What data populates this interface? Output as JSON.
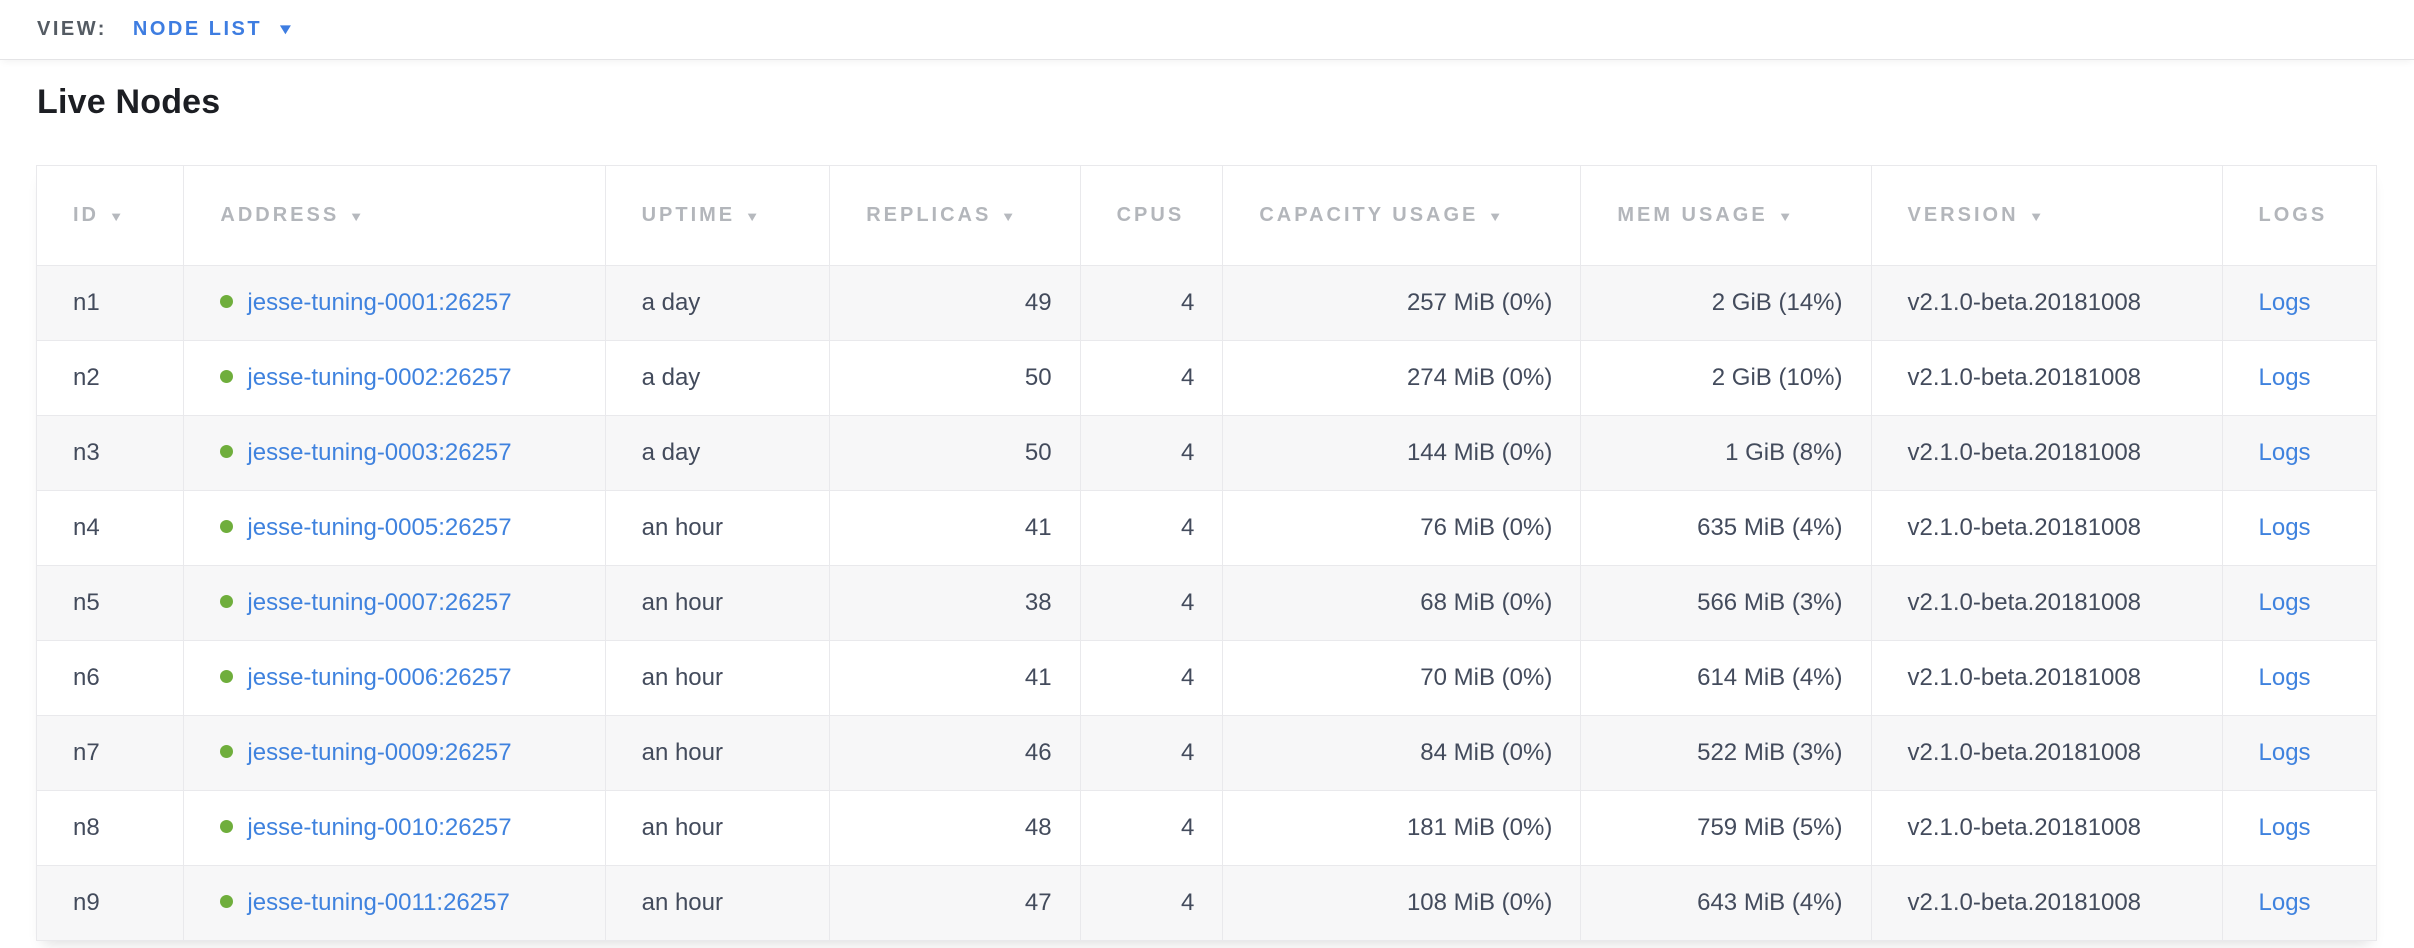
{
  "toolbar": {
    "view_label": "VIEW:",
    "selected_view": "NODE LIST"
  },
  "page": {
    "title": "Live Nodes"
  },
  "icons": {
    "sort_caret": "▼",
    "dropdown_caret": "▼",
    "health_dot": "healthy-green-dot"
  },
  "colors": {
    "accent_blue": "#3e7de1",
    "link_blue": "#3f82de",
    "healthy_green": "#6fae3c",
    "header_gray": "#b3b6bb",
    "body_text": "#434b5c",
    "row_alt_bg": "#f7f7f8",
    "border": "#e9e9ec"
  },
  "table": {
    "columns": [
      {
        "key": "id",
        "label": "ID",
        "sortable": true,
        "align": "left"
      },
      {
        "key": "address",
        "label": "ADDRESS",
        "sortable": true,
        "align": "left"
      },
      {
        "key": "uptime",
        "label": "UPTIME",
        "sortable": true,
        "align": "left"
      },
      {
        "key": "replicas",
        "label": "REPLICAS",
        "sortable": true,
        "align": "right"
      },
      {
        "key": "cpus",
        "label": "CPUS",
        "sortable": false,
        "align": "right"
      },
      {
        "key": "capacity",
        "label": "CAPACITY USAGE",
        "sortable": true,
        "align": "right"
      },
      {
        "key": "mem",
        "label": "MEM USAGE",
        "sortable": true,
        "align": "right"
      },
      {
        "key": "version",
        "label": "VERSION",
        "sortable": true,
        "align": "left"
      },
      {
        "key": "logs",
        "label": "LOGS",
        "sortable": false,
        "align": "left"
      }
    ],
    "rows": [
      {
        "id": "n1",
        "status": "healthy",
        "address": "jesse-tuning-0001:26257",
        "uptime": "a day",
        "replicas": "49",
        "cpus": "4",
        "capacity": "257 MiB (0%)",
        "mem": "2 GiB (14%)",
        "version": "v2.1.0-beta.20181008",
        "logs_label": "Logs"
      },
      {
        "id": "n2",
        "status": "healthy",
        "address": "jesse-tuning-0002:26257",
        "uptime": "a day",
        "replicas": "50",
        "cpus": "4",
        "capacity": "274 MiB (0%)",
        "mem": "2 GiB (10%)",
        "version": "v2.1.0-beta.20181008",
        "logs_label": "Logs"
      },
      {
        "id": "n3",
        "status": "healthy",
        "address": "jesse-tuning-0003:26257",
        "uptime": "a day",
        "replicas": "50",
        "cpus": "4",
        "capacity": "144 MiB (0%)",
        "mem": "1 GiB (8%)",
        "version": "v2.1.0-beta.20181008",
        "logs_label": "Logs"
      },
      {
        "id": "n4",
        "status": "healthy",
        "address": "jesse-tuning-0005:26257",
        "uptime": "an hour",
        "replicas": "41",
        "cpus": "4",
        "capacity": "76 MiB (0%)",
        "mem": "635 MiB (4%)",
        "version": "v2.1.0-beta.20181008",
        "logs_label": "Logs"
      },
      {
        "id": "n5",
        "status": "healthy",
        "address": "jesse-tuning-0007:26257",
        "uptime": "an hour",
        "replicas": "38",
        "cpus": "4",
        "capacity": "68 MiB (0%)",
        "mem": "566 MiB (3%)",
        "version": "v2.1.0-beta.20181008",
        "logs_label": "Logs"
      },
      {
        "id": "n6",
        "status": "healthy",
        "address": "jesse-tuning-0006:26257",
        "uptime": "an hour",
        "replicas": "41",
        "cpus": "4",
        "capacity": "70 MiB (0%)",
        "mem": "614 MiB (4%)",
        "version": "v2.1.0-beta.20181008",
        "logs_label": "Logs"
      },
      {
        "id": "n7",
        "status": "healthy",
        "address": "jesse-tuning-0009:26257",
        "uptime": "an hour",
        "replicas": "46",
        "cpus": "4",
        "capacity": "84 MiB (0%)",
        "mem": "522 MiB (3%)",
        "version": "v2.1.0-beta.20181008",
        "logs_label": "Logs"
      },
      {
        "id": "n8",
        "status": "healthy",
        "address": "jesse-tuning-0010:26257",
        "uptime": "an hour",
        "replicas": "48",
        "cpus": "4",
        "capacity": "181 MiB (0%)",
        "mem": "759 MiB (5%)",
        "version": "v2.1.0-beta.20181008",
        "logs_label": "Logs"
      },
      {
        "id": "n9",
        "status": "healthy",
        "address": "jesse-tuning-0011:26257",
        "uptime": "an hour",
        "replicas": "47",
        "cpus": "4",
        "capacity": "108 MiB (0%)",
        "mem": "643 MiB (4%)",
        "version": "v2.1.0-beta.20181008",
        "logs_label": "Logs"
      }
    ]
  }
}
